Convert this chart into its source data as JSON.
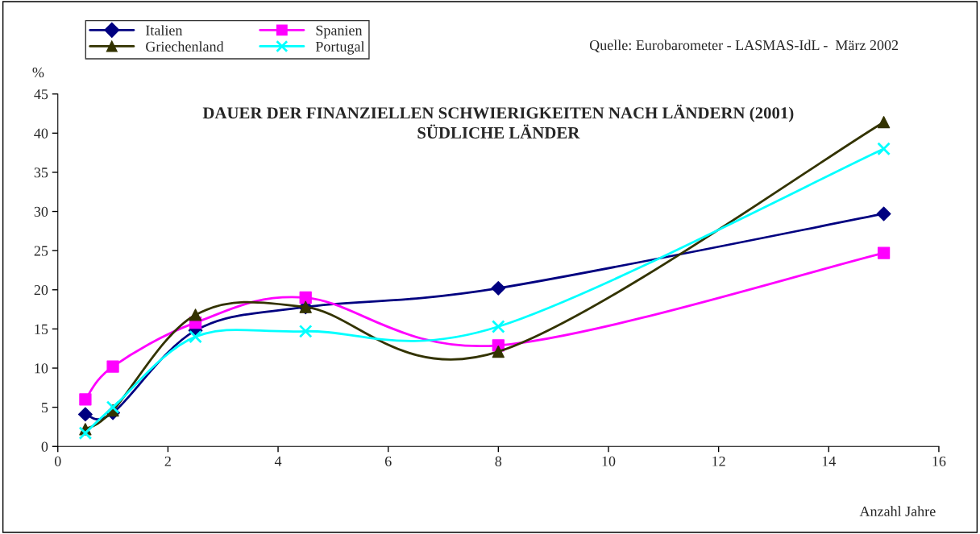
{
  "chart_data": {
    "type": "line",
    "title": "DAUER DER FINANZIELLEN SCHWIERIGKEITEN NACH LÄNDERN (2001)\nSÜDLICHE LÄNDER",
    "xlabel": "Anzahl Jahre",
    "ylabel": "%",
    "annotations": [
      "Quelle: Eurobarometer - LASMAS-IdL -  März 2002"
    ],
    "x": [
      0.5,
      1,
      2.5,
      4.5,
      8,
      15
    ],
    "series": [
      {
        "name": "Italien",
        "color": "#000080",
        "marker": "diamond",
        "values": [
          4.1,
          4.3,
          14.8,
          17.8,
          20.2,
          29.7
        ]
      },
      {
        "name": "Spanien",
        "color": "#ff00ff",
        "marker": "square",
        "values": [
          6.0,
          10.2,
          15.8,
          19.0,
          12.9,
          24.7
        ]
      },
      {
        "name": "Griechenland",
        "color": "#333300",
        "marker": "triangle",
        "values": [
          2.2,
          4.6,
          16.8,
          17.8,
          12.1,
          41.4
        ]
      },
      {
        "name": "Portugal",
        "color": "#00ffff",
        "marker": "cross",
        "values": [
          1.7,
          5.0,
          14.0,
          14.7,
          15.3,
          38.0
        ]
      }
    ],
    "xlim": [
      0,
      16
    ],
    "xticks": [
      0,
      2,
      4,
      6,
      8,
      10,
      12,
      14,
      16
    ],
    "ylim": [
      0,
      45
    ],
    "yticks": [
      0,
      5,
      10,
      15,
      20,
      25,
      30,
      35,
      40,
      45
    ],
    "grid": false,
    "legend": "top left",
    "line_style": "solid"
  }
}
